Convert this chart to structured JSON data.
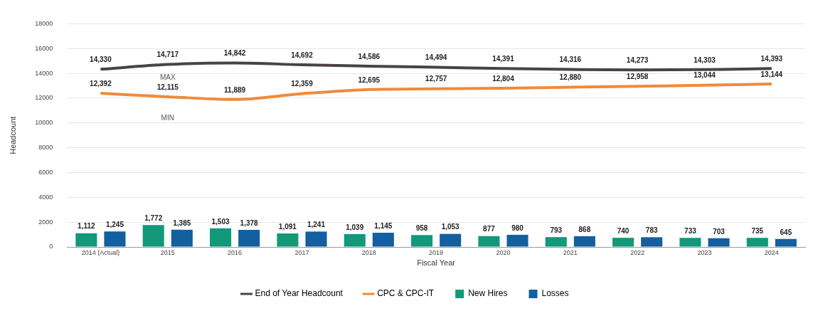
{
  "chart_data": {
    "type": "bar",
    "xlabel": "Fiscal Year",
    "ylabel": "Headcount",
    "categories": [
      "2014 (Actual)",
      "2015",
      "2016",
      "2017",
      "2018",
      "2019",
      "2020",
      "2021",
      "2022",
      "2023",
      "2024"
    ],
    "series": [
      {
        "name": "End of Year Headcount",
        "type": "line",
        "color": "#4a4341",
        "values": [
          14330,
          14717,
          14842,
          14692,
          14586,
          14494,
          14391,
          14316,
          14273,
          14303,
          14393
        ],
        "value_labels": [
          "14,330",
          "14,717",
          "14,842",
          "14,692",
          "14,586",
          "14,494",
          "14,391",
          "14,316",
          "14,273",
          "14,303",
          "14,393"
        ]
      },
      {
        "name": "CPC & CPC-IT",
        "type": "line",
        "color": "#f08a3a",
        "values": [
          12392,
          12115,
          11889,
          12359,
          12695,
          12757,
          12804,
          12880,
          12958,
          13044,
          13144
        ],
        "value_labels": [
          "12,392",
          "12,115",
          "11,889",
          "12,359",
          "12,695",
          "12,757",
          "12,804",
          "12,880",
          "12,958",
          "13,044",
          "13,144"
        ]
      },
      {
        "name": "New Hires",
        "color": "#11997a",
        "values": [
          1112,
          1772,
          1503,
          1091,
          1039,
          958,
          877,
          793,
          740,
          733,
          735
        ],
        "value_labels": [
          "1,112",
          "1,772",
          "1,503",
          "1,091",
          "1,039",
          "958",
          "877",
          "793",
          "740",
          "733",
          "735"
        ]
      },
      {
        "name": "Losses",
        "color": "#135fa0",
        "values": [
          1245,
          1385,
          1378,
          1241,
          1145,
          1053,
          980,
          868,
          783,
          703,
          645
        ],
        "value_labels": [
          "1,245",
          "1,385",
          "1,378",
          "1,241",
          "1,145",
          "1,053",
          "980",
          "868",
          "783",
          "703",
          "645"
        ]
      }
    ],
    "ylim": [
      0,
      18000
    ],
    "yticks": [
      0,
      2000,
      4000,
      6000,
      8000,
      10000,
      12000,
      14000,
      16000,
      18000
    ],
    "grid": "y",
    "legend": "bottom",
    "marker": "none",
    "line_style": "solid",
    "annotations": [
      "MAX",
      "MIN"
    ]
  }
}
